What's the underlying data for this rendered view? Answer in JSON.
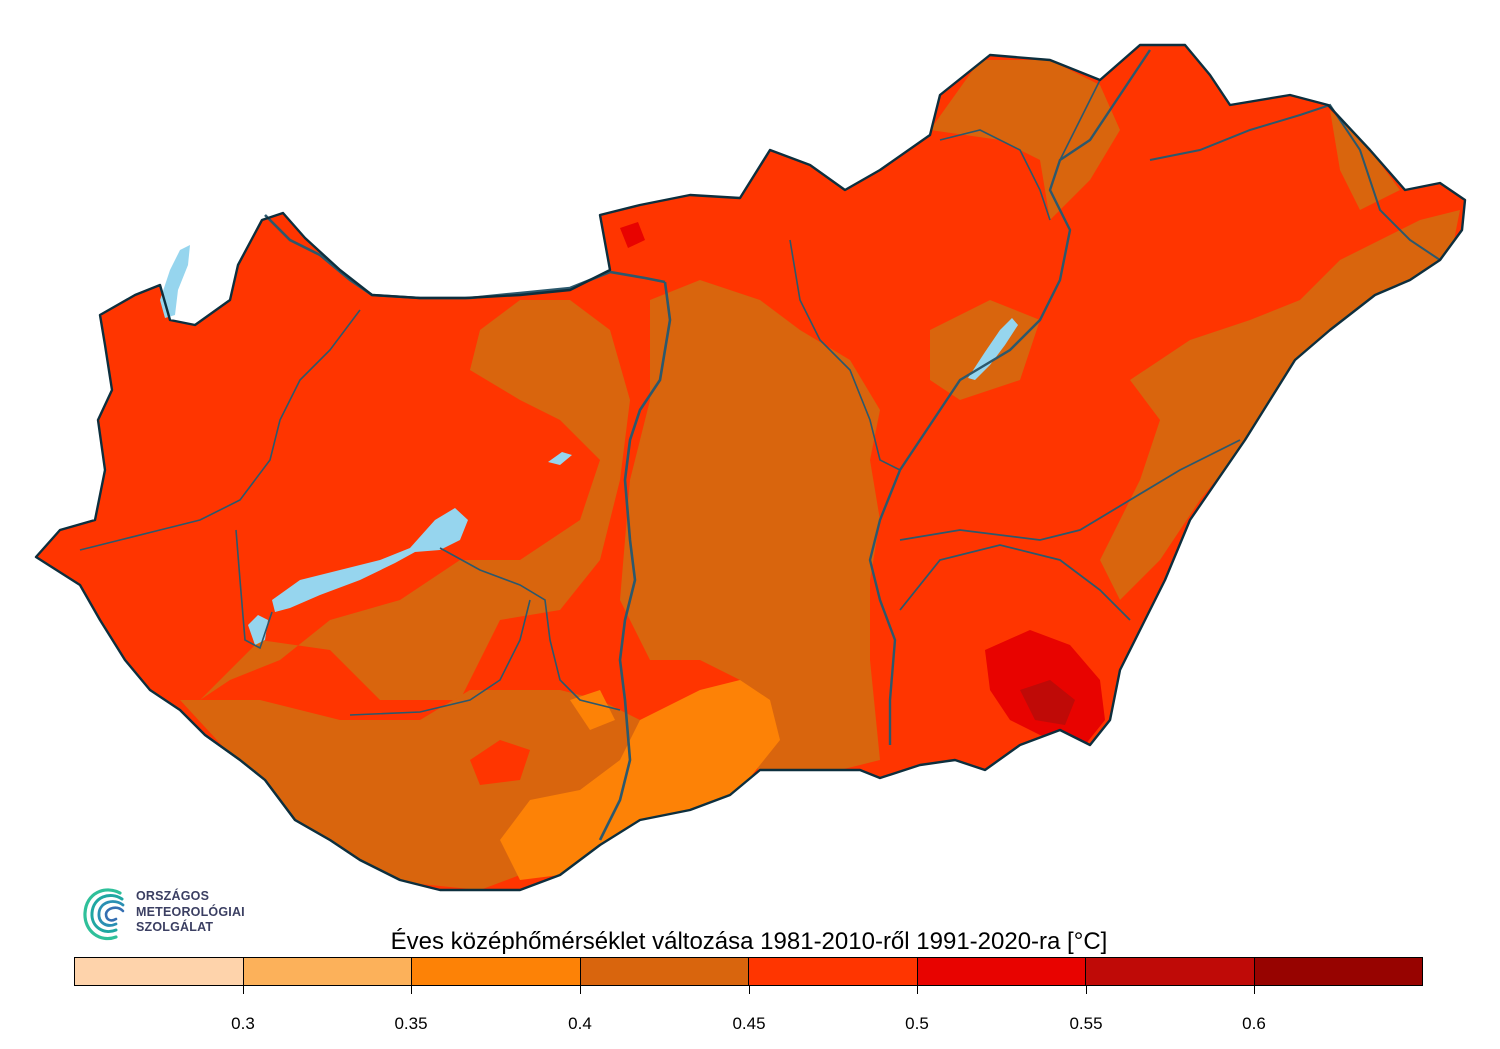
{
  "map": {
    "fill_colors": {
      "c_030_035": "#fcb15a",
      "c_035_040": "#fd8206",
      "c_040_045": "#d9650d",
      "c_045_050": "#ff3500",
      "c_050_055": "#e80300",
      "c_055_060": "#bf0a07",
      "water": "#96d5ee",
      "river": "#2c586c",
      "border": "#0d2f3e"
    }
  },
  "logo": {
    "line1": "ORSZÁGOS",
    "line2": "METEOROLÓGIAI",
    "line3": "SZOLGÁLAT",
    "icon": "omsz-swirl-icon"
  },
  "legend": {
    "title": "Éves középhőmérséklet változása 1981-2010-ről 1991-2020-ra [°C]",
    "min": 0.25,
    "max": 0.65,
    "bins": [
      {
        "from": 0.25,
        "to": 0.3,
        "color": "#fed3ab"
      },
      {
        "from": 0.3,
        "to": 0.35,
        "color": "#fcb15a"
      },
      {
        "from": 0.35,
        "to": 0.4,
        "color": "#fd8206"
      },
      {
        "from": 0.4,
        "to": 0.45,
        "color": "#d9650d"
      },
      {
        "from": 0.45,
        "to": 0.5,
        "color": "#ff3500"
      },
      {
        "from": 0.5,
        "to": 0.55,
        "color": "#e80300"
      },
      {
        "from": 0.55,
        "to": 0.6,
        "color": "#bf0a07"
      },
      {
        "from": 0.6,
        "to": 0.65,
        "color": "#970300"
      }
    ],
    "ticks": [
      {
        "value": 0.3,
        "label": "0.3"
      },
      {
        "value": 0.35,
        "label": "0.35"
      },
      {
        "value": 0.4,
        "label": "0.4"
      },
      {
        "value": 0.45,
        "label": "0.45"
      },
      {
        "value": 0.5,
        "label": "0.5"
      },
      {
        "value": 0.55,
        "label": "0.55"
      },
      {
        "value": 0.6,
        "label": "0.6"
      }
    ]
  }
}
